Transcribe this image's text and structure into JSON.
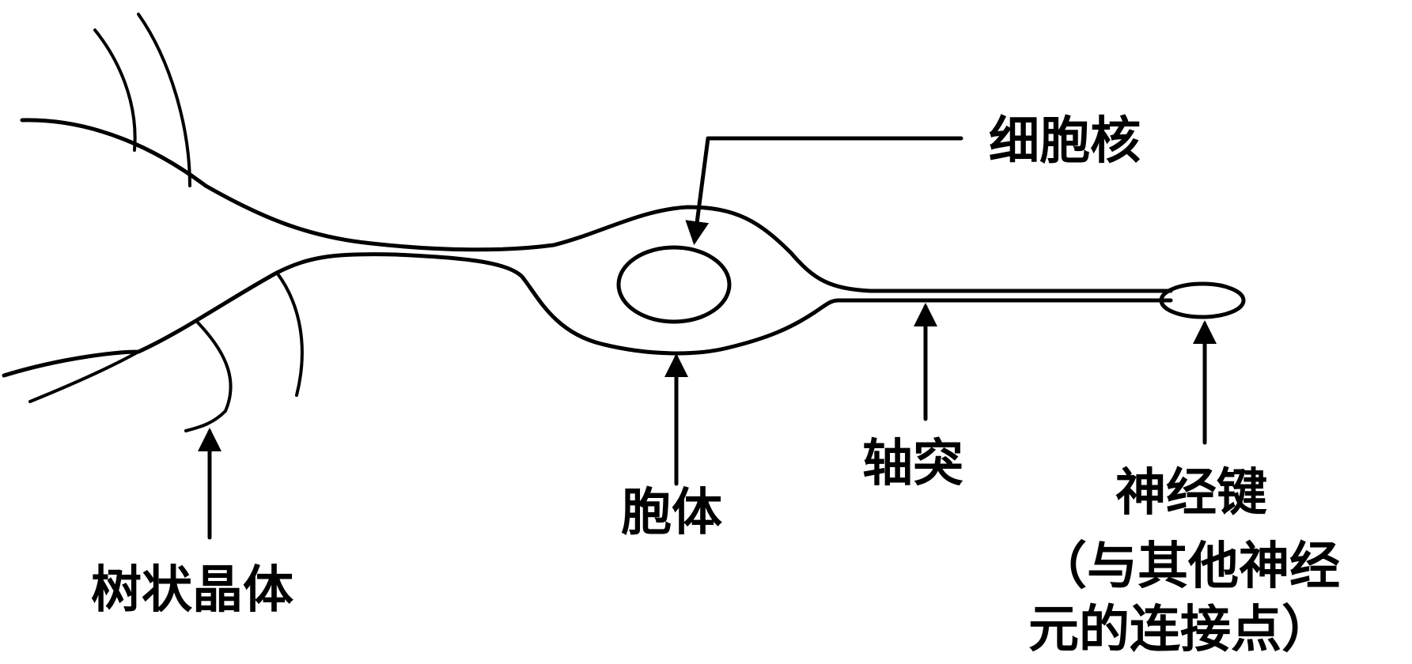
{
  "labels": {
    "nucleus": "细胞核",
    "dendrite": "树状晶体",
    "cell_body": "胞体",
    "axon": "轴突",
    "synapse_line1": "神经键",
    "synapse_line2": "（与其他神经",
    "synapse_line3": "元的连接点）"
  },
  "colors": {
    "ink": "#000000",
    "background": "#ffffff"
  }
}
